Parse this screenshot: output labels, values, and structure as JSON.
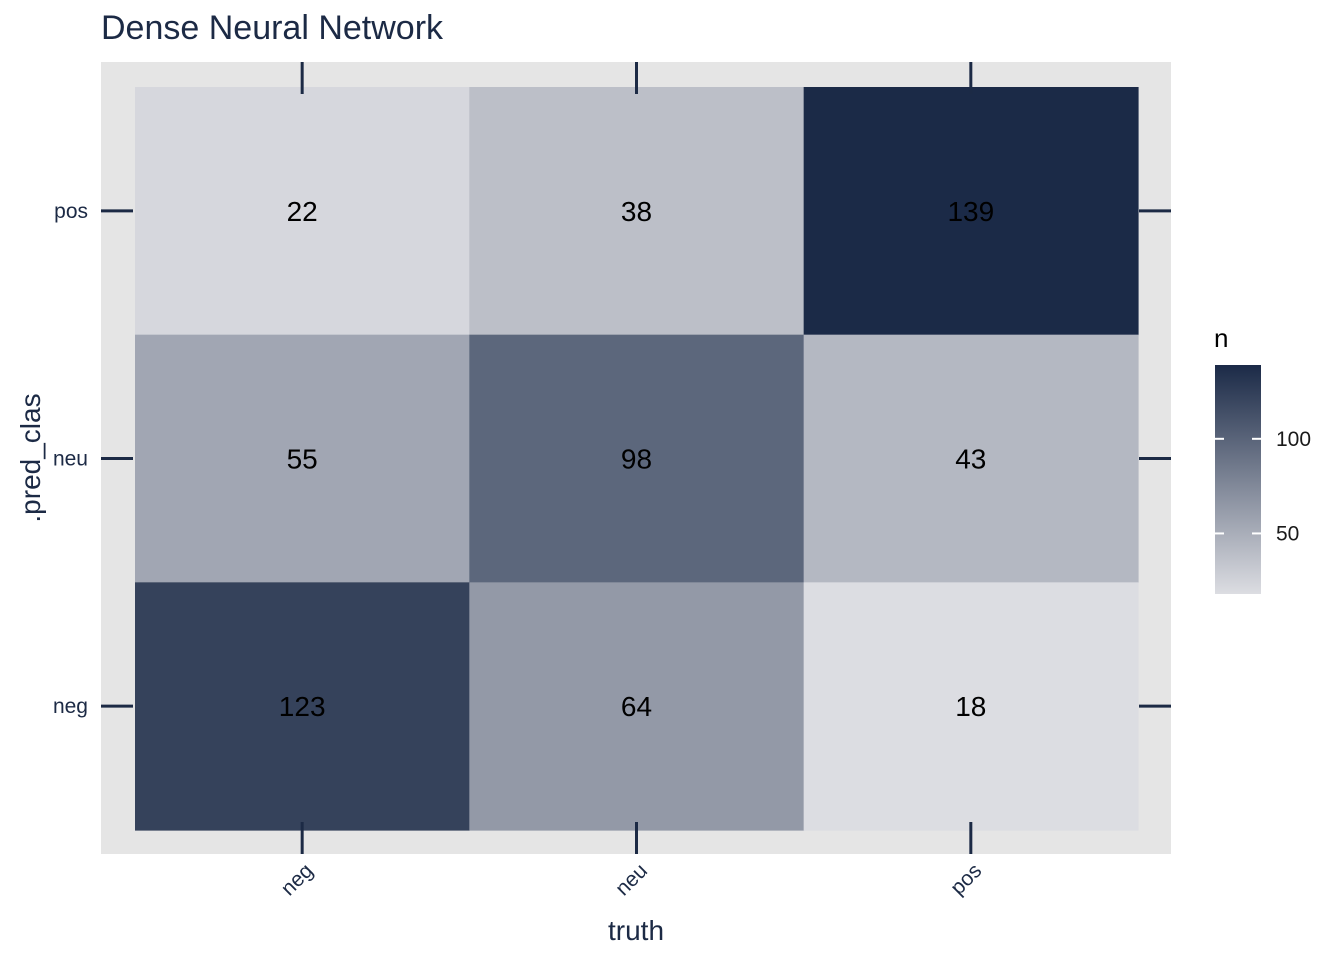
{
  "chart_data": {
    "type": "heatmap",
    "title": "Dense Neural Network",
    "xlabel": "truth",
    "ylabel": ".pred_clas",
    "x_categories": [
      "neg",
      "neu",
      "pos"
    ],
    "y_categories": [
      "neg",
      "neu",
      "pos"
    ],
    "cells": [
      {
        "x": "neg",
        "y": "pos",
        "value": 22
      },
      {
        "x": "neu",
        "y": "pos",
        "value": 38
      },
      {
        "x": "pos",
        "y": "pos",
        "value": 139
      },
      {
        "x": "neg",
        "y": "neu",
        "value": 55
      },
      {
        "x": "neu",
        "y": "neu",
        "value": 98
      },
      {
        "x": "pos",
        "y": "neu",
        "value": 43
      },
      {
        "x": "neg",
        "y": "neg",
        "value": 123
      },
      {
        "x": "neu",
        "y": "neg",
        "value": 64
      },
      {
        "x": "pos",
        "y": "neg",
        "value": 18
      }
    ],
    "legend": {
      "title": "n",
      "ticks": [
        50,
        100
      ],
      "placement": "right"
    },
    "colors": {
      "low": "#dcdde2",
      "high": "#1b2a47",
      "panel_background": "#e5e5e5",
      "axis_ink": "#1c2a45"
    },
    "x_tick_rotation": 45,
    "grid": false
  }
}
